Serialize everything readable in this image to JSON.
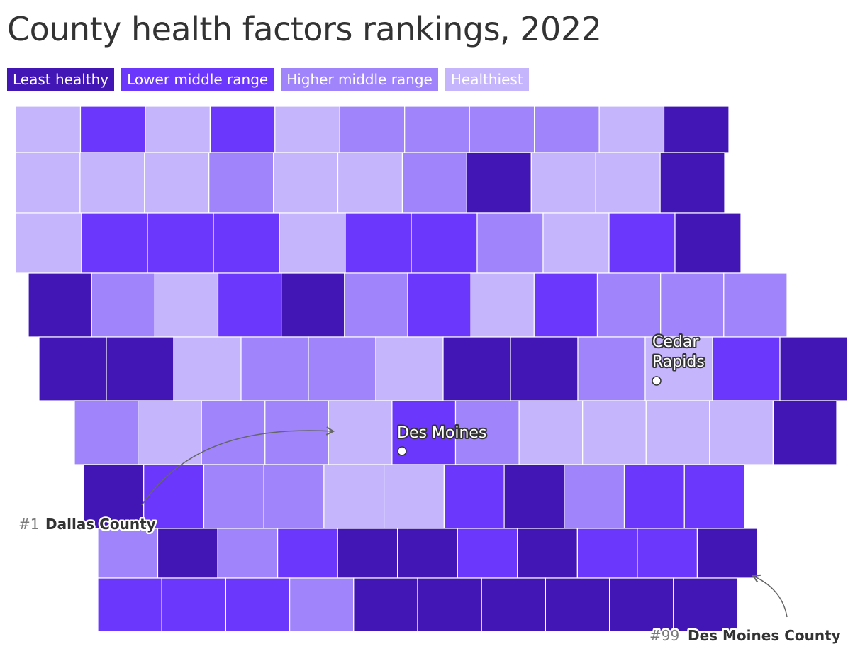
{
  "title": "County health factors rankings, 2022",
  "legend": [
    {
      "label": "Least healthy",
      "color": "#4116b4"
    },
    {
      "label": "Lower middle range",
      "color": "#6c37fc"
    },
    {
      "label": "Higher middle range",
      "color": "#9f84fb"
    },
    {
      "label": "Healthiest",
      "color": "#c5b5fd"
    }
  ],
  "cities": [
    {
      "name_lines": [
        "Cedar",
        "Rapids"
      ]
    },
    {
      "name_lines": [
        "Des Moines"
      ]
    }
  ],
  "callouts": [
    {
      "rank": "#1",
      "county": "Dallas County"
    },
    {
      "rank": "#99",
      "county": "Des Moines County"
    }
  ],
  "county_categories": [
    [
      3,
      1,
      3,
      1,
      3,
      2,
      2,
      2,
      2,
      3,
      0
    ],
    [
      3,
      3,
      3,
      2,
      3,
      3,
      2,
      0,
      3,
      3,
      0
    ],
    [
      3,
      1,
      1,
      1,
      3,
      1,
      1,
      2,
      3,
      1,
      0
    ],
    [
      0,
      2,
      3,
      1,
      0,
      2,
      1,
      3,
      1,
      2,
      2,
      2
    ],
    [
      0,
      0,
      3,
      2,
      2,
      3,
      0,
      0,
      2,
      3,
      1,
      0
    ],
    [
      2,
      3,
      2,
      2,
      3,
      1,
      2,
      3,
      3,
      3,
      3,
      0
    ],
    [
      0,
      1,
      2,
      2,
      3,
      3,
      1,
      0,
      2,
      1,
      1
    ],
    [
      2,
      0,
      2,
      1,
      0,
      0,
      1,
      0,
      1,
      1,
      0
    ],
    [
      1,
      1,
      1,
      2,
      0,
      0,
      0,
      0,
      0,
      0
    ]
  ]
}
